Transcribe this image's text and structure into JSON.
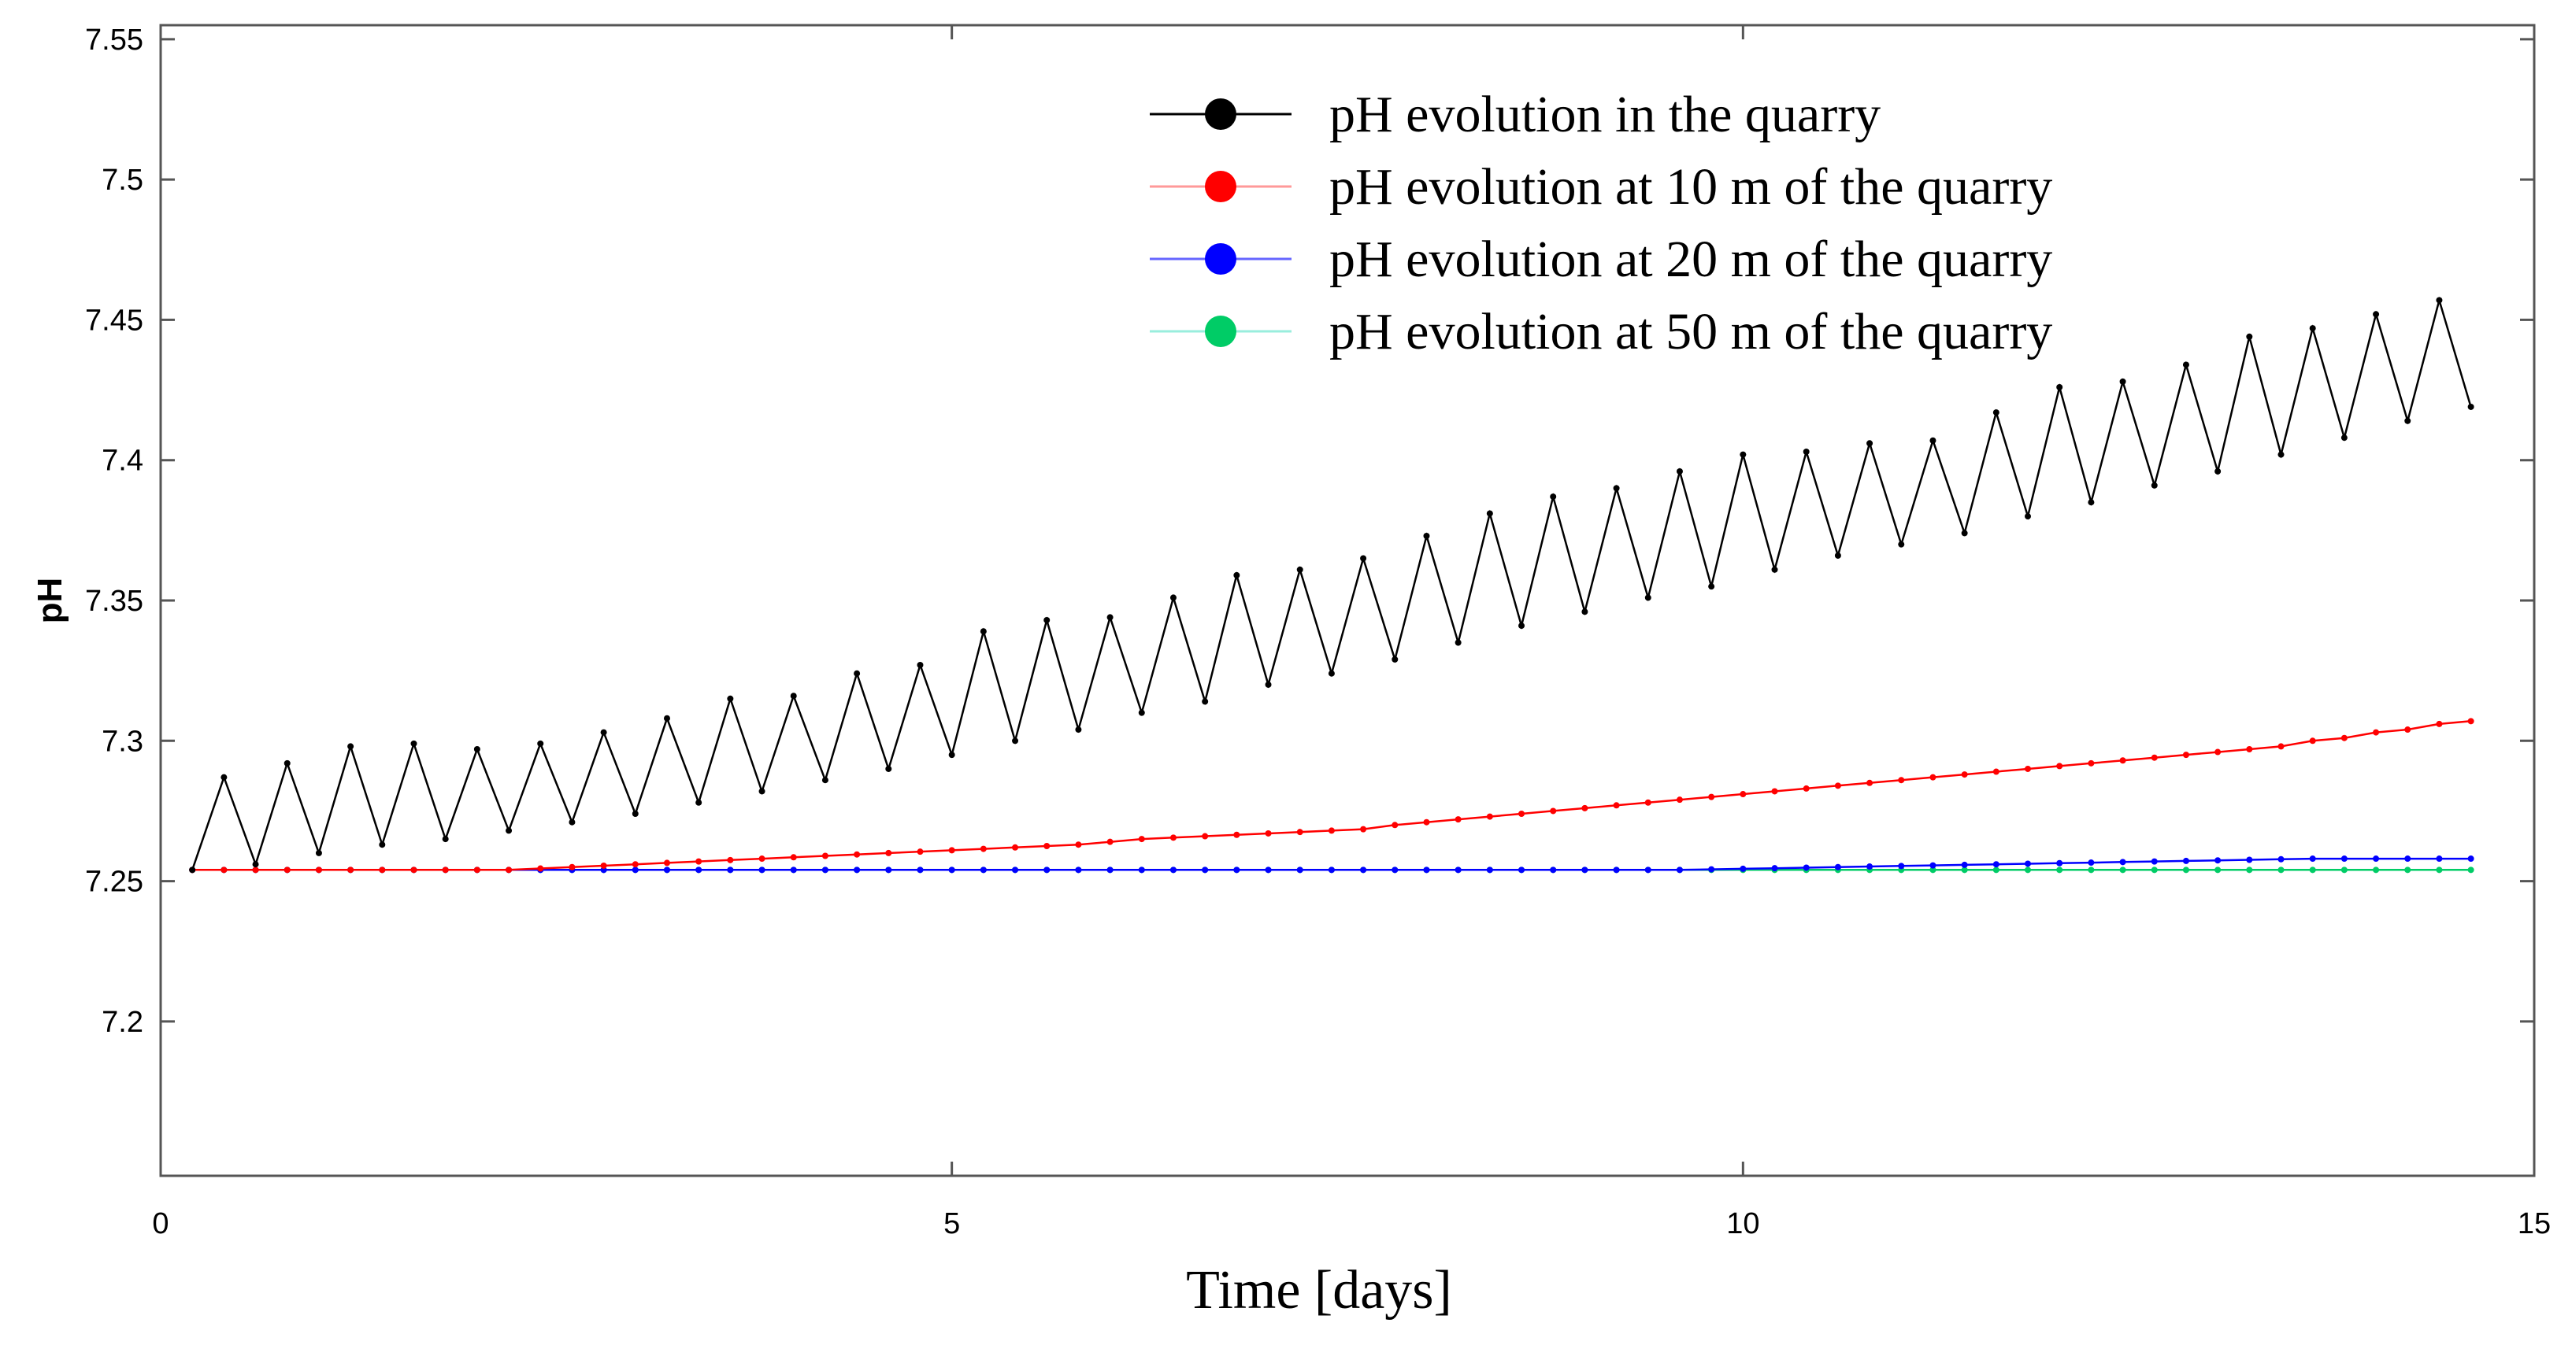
{
  "chart_data": {
    "type": "line",
    "title": "",
    "xlabel": "Time [days]",
    "ylabel": "pH",
    "xlim": [
      0,
      15
    ],
    "ylim": [
      7.145,
      7.555
    ],
    "xticks": [
      0,
      5,
      10,
      15
    ],
    "xtick_labels": [
      "0",
      "5",
      "10",
      "15"
    ],
    "yticks": [
      7.2,
      7.25,
      7.3,
      7.35,
      7.4,
      7.45,
      7.5,
      7.55
    ],
    "ytick_labels": [
      "7.2",
      "7.25",
      "7.3",
      "7.35",
      "7.4",
      "7.45",
      "7.5",
      "7.55"
    ],
    "grid": false,
    "legend_position": "top-right",
    "series": [
      {
        "name": "pH evolution in the quarry",
        "color": "#000000",
        "x": [
          0.2,
          0.4,
          0.6,
          0.8,
          1.0,
          1.2,
          1.4,
          1.6,
          1.8,
          2.0,
          2.2,
          2.4,
          2.6,
          2.8,
          3.0,
          3.2,
          3.4,
          3.6,
          3.8,
          4.0,
          4.2,
          4.4,
          4.6,
          4.8,
          5.0,
          5.2,
          5.4,
          5.6,
          5.8,
          6.0,
          6.2,
          6.4,
          6.6,
          6.8,
          7.0,
          7.2,
          7.4,
          7.6,
          7.8,
          8.0,
          8.2,
          8.4,
          8.6,
          8.8,
          9.0,
          9.2,
          9.4,
          9.6,
          9.8,
          10.0,
          10.2,
          10.4,
          10.6,
          10.8,
          11.0,
          11.2,
          11.4,
          11.6,
          11.8,
          12.0,
          12.2,
          12.4,
          12.6,
          12.8,
          13.0,
          13.2,
          13.4,
          13.6,
          13.8,
          14.0,
          14.2,
          14.4,
          14.6
        ],
        "y": [
          7.254,
          7.287,
          7.256,
          7.292,
          7.26,
          7.298,
          7.263,
          7.299,
          7.265,
          7.297,
          7.268,
          7.299,
          7.271,
          7.303,
          7.274,
          7.308,
          7.278,
          7.315,
          7.282,
          7.316,
          7.286,
          7.324,
          7.29,
          7.327,
          7.295,
          7.339,
          7.3,
          7.343,
          7.304,
          7.344,
          7.31,
          7.351,
          7.314,
          7.359,
          7.32,
          7.361,
          7.324,
          7.365,
          7.329,
          7.373,
          7.335,
          7.381,
          7.341,
          7.387,
          7.346,
          7.39,
          7.351,
          7.396,
          7.355,
          7.402,
          7.361,
          7.403,
          7.366,
          7.406,
          7.37,
          7.407,
          7.374,
          7.417,
          7.38,
          7.426,
          7.385,
          7.428,
          7.391,
          7.434,
          7.396,
          7.444,
          7.402,
          7.447,
          7.408,
          7.452,
          7.414,
          7.457,
          7.419
        ]
      },
      {
        "name": "pH evolution at 10 m of the quarry",
        "color": "#ff0000",
        "x": [
          0.2,
          0.4,
          0.6,
          0.8,
          1.0,
          1.2,
          1.4,
          1.6,
          1.8,
          2.0,
          2.2,
          2.4,
          2.6,
          2.8,
          3.0,
          3.2,
          3.4,
          3.6,
          3.8,
          4.0,
          4.2,
          4.4,
          4.6,
          4.8,
          5.0,
          5.2,
          5.4,
          5.6,
          5.8,
          6.0,
          6.2,
          6.4,
          6.6,
          6.8,
          7.0,
          7.2,
          7.4,
          7.6,
          7.8,
          8.0,
          8.2,
          8.4,
          8.6,
          8.8,
          9.0,
          9.2,
          9.4,
          9.6,
          9.8,
          10.0,
          10.2,
          10.4,
          10.6,
          10.8,
          11.0,
          11.2,
          11.4,
          11.6,
          11.8,
          12.0,
          12.2,
          12.4,
          12.6,
          12.8,
          13.0,
          13.2,
          13.4,
          13.6,
          13.8,
          14.0,
          14.2,
          14.4,
          14.6
        ],
        "y": [
          7.254,
          7.254,
          7.254,
          7.254,
          7.254,
          7.254,
          7.254,
          7.254,
          7.254,
          7.254,
          7.254,
          7.2545,
          7.255,
          7.2555,
          7.256,
          7.2565,
          7.257,
          7.2575,
          7.258,
          7.2585,
          7.259,
          7.2595,
          7.26,
          7.2605,
          7.261,
          7.2615,
          7.262,
          7.2625,
          7.263,
          7.264,
          7.265,
          7.2655,
          7.266,
          7.2665,
          7.267,
          7.2675,
          7.268,
          7.2685,
          7.27,
          7.271,
          7.272,
          7.273,
          7.274,
          7.275,
          7.276,
          7.277,
          7.278,
          7.279,
          7.28,
          7.281,
          7.282,
          7.283,
          7.284,
          7.285,
          7.286,
          7.287,
          7.288,
          7.289,
          7.29,
          7.291,
          7.292,
          7.293,
          7.294,
          7.295,
          7.296,
          7.297,
          7.298,
          7.3,
          7.301,
          7.303,
          7.304,
          7.306,
          7.307
        ]
      },
      {
        "name": "pH evolution at 20 m of the quarry",
        "color": "#0000ff",
        "x": [
          0.2,
          0.4,
          0.6,
          0.8,
          1.0,
          1.2,
          1.4,
          1.6,
          1.8,
          2.0,
          2.2,
          2.4,
          2.6,
          2.8,
          3.0,
          3.2,
          3.4,
          3.6,
          3.8,
          4.0,
          4.2,
          4.4,
          4.6,
          4.8,
          5.0,
          5.2,
          5.4,
          5.6,
          5.8,
          6.0,
          6.2,
          6.4,
          6.6,
          6.8,
          7.0,
          7.2,
          7.4,
          7.6,
          7.8,
          8.0,
          8.2,
          8.4,
          8.6,
          8.8,
          9.0,
          9.2,
          9.4,
          9.6,
          9.8,
          10.0,
          10.2,
          10.4,
          10.6,
          10.8,
          11.0,
          11.2,
          11.4,
          11.6,
          11.8,
          12.0,
          12.2,
          12.4,
          12.6,
          12.8,
          13.0,
          13.2,
          13.4,
          13.6,
          13.8,
          14.0,
          14.2,
          14.4,
          14.6
        ],
        "y": [
          7.254,
          7.254,
          7.254,
          7.254,
          7.254,
          7.254,
          7.254,
          7.254,
          7.254,
          7.254,
          7.254,
          7.254,
          7.254,
          7.254,
          7.254,
          7.254,
          7.254,
          7.254,
          7.254,
          7.254,
          7.254,
          7.254,
          7.254,
          7.254,
          7.254,
          7.254,
          7.254,
          7.254,
          7.254,
          7.254,
          7.254,
          7.254,
          7.254,
          7.254,
          7.254,
          7.254,
          7.254,
          7.254,
          7.254,
          7.254,
          7.254,
          7.254,
          7.254,
          7.254,
          7.254,
          7.254,
          7.254,
          7.254,
          7.2542,
          7.2544,
          7.2546,
          7.2548,
          7.255,
          7.2552,
          7.2554,
          7.2556,
          7.2558,
          7.256,
          7.2562,
          7.2564,
          7.2566,
          7.2568,
          7.257,
          7.2572,
          7.2574,
          7.2576,
          7.2578,
          7.258,
          7.258,
          7.258,
          7.258,
          7.258,
          7.258
        ]
      },
      {
        "name": "pH evolution at 50 m of the quarry",
        "color": "#00cc66",
        "x": [
          0.2,
          0.4,
          0.6,
          0.8,
          1.0,
          1.2,
          1.4,
          1.6,
          1.8,
          2.0,
          2.2,
          2.4,
          2.6,
          2.8,
          3.0,
          3.2,
          3.4,
          3.6,
          3.8,
          4.0,
          4.2,
          4.4,
          4.6,
          4.8,
          5.0,
          5.2,
          5.4,
          5.6,
          5.8,
          6.0,
          6.2,
          6.4,
          6.6,
          6.8,
          7.0,
          7.2,
          7.4,
          7.6,
          7.8,
          8.0,
          8.2,
          8.4,
          8.6,
          8.8,
          9.0,
          9.2,
          9.4,
          9.6,
          9.8,
          10.0,
          10.2,
          10.4,
          10.6,
          10.8,
          11.0,
          11.2,
          11.4,
          11.6,
          11.8,
          12.0,
          12.2,
          12.4,
          12.6,
          12.8,
          13.0,
          13.2,
          13.4,
          13.6,
          13.8,
          14.0,
          14.2,
          14.4,
          14.6
        ],
        "y": [
          7.254,
          7.254,
          7.254,
          7.254,
          7.254,
          7.254,
          7.254,
          7.254,
          7.254,
          7.254,
          7.254,
          7.254,
          7.254,
          7.254,
          7.254,
          7.254,
          7.254,
          7.254,
          7.254,
          7.254,
          7.254,
          7.254,
          7.254,
          7.254,
          7.254,
          7.254,
          7.254,
          7.254,
          7.254,
          7.254,
          7.254,
          7.254,
          7.254,
          7.254,
          7.254,
          7.254,
          7.254,
          7.254,
          7.254,
          7.254,
          7.254,
          7.254,
          7.254,
          7.254,
          7.254,
          7.254,
          7.254,
          7.254,
          7.254,
          7.254,
          7.254,
          7.254,
          7.254,
          7.254,
          7.254,
          7.254,
          7.254,
          7.254,
          7.254,
          7.254,
          7.254,
          7.254,
          7.254,
          7.254,
          7.254,
          7.254,
          7.254,
          7.254,
          7.254,
          7.254,
          7.254,
          7.254,
          7.254
        ]
      }
    ]
  }
}
